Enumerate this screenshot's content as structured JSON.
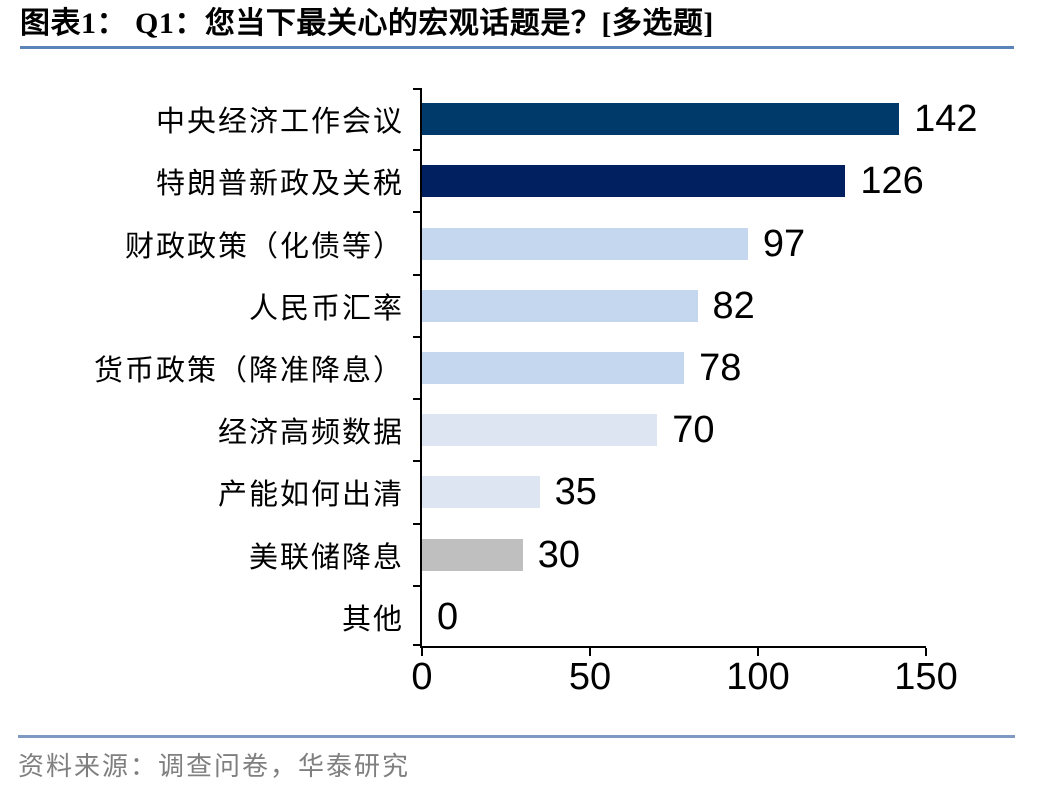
{
  "header": {
    "title": "图表1： Q1：您当下最关心的宏观话题是？[多选题]"
  },
  "footer": {
    "source": "资料来源：调查问卷，华泰研究"
  },
  "colors": {
    "navy": "#003A6B",
    "dark_navy": "#002060",
    "light_blue": "#C5D7EF",
    "pale_blue": "#DCE5F1",
    "gray": "#BFBFBF",
    "axis": "#000000",
    "title_rule": "#5B84B8",
    "footer_rule": "#7E9AC2",
    "source_text": "#7F7F7F",
    "value_text": "#000000"
  },
  "chart_data": {
    "type": "bar",
    "orientation": "horizontal",
    "title": "Q1：您当下最关心的宏观话题是？[多选题]",
    "categories": [
      "中央经济工作会议",
      "特朗普新政及关税",
      "财政政策（化债等）",
      "人民币汇率",
      "货币政策（降准降息）",
      "经济高频数据",
      "产能如何出清",
      "美联储降息",
      "其他"
    ],
    "values": [
      142,
      126,
      97,
      82,
      78,
      70,
      35,
      30,
      0
    ],
    "bar_colors": [
      "navy",
      "dark_navy",
      "light_blue",
      "light_blue",
      "light_blue",
      "pale_blue",
      "pale_blue",
      "gray",
      "light_blue"
    ],
    "xlim": [
      0,
      150
    ],
    "xticks": [
      0,
      50,
      100,
      150
    ],
    "xlabel": "",
    "ylabel": "",
    "grid": false,
    "legend": false,
    "value_labels_shown": true
  }
}
